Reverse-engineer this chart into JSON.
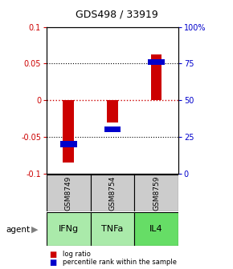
{
  "title": "GDS498 / 33919",
  "samples": [
    "GSM8749",
    "GSM8754",
    "GSM8759"
  ],
  "agents": [
    "IFNg",
    "TNFa",
    "IL4"
  ],
  "log_ratios": [
    -0.085,
    -0.03,
    0.062
  ],
  "percentile_ranks": [
    0.2,
    0.3,
    0.76
  ],
  "ylim_left": [
    -0.1,
    0.1
  ],
  "ylim_right": [
    0.0,
    1.0
  ],
  "yticks_left": [
    -0.1,
    -0.05,
    0,
    0.05,
    0.1
  ],
  "ytick_labels_left": [
    "-0.1",
    "-0.05",
    "0",
    "0.05",
    "0.1"
  ],
  "yticks_right": [
    0.0,
    0.25,
    0.5,
    0.75,
    1.0
  ],
  "ytick_labels_right": [
    "0",
    "25",
    "50",
    "75",
    "100%"
  ],
  "red_bar_width": 0.25,
  "blue_bar_width": 0.38,
  "blue_bar_height": 0.008,
  "agent_colors": [
    "#aaeaaa",
    "#aaeaaa",
    "#66dd66"
  ],
  "sample_box_color": "#cccccc",
  "left_tick_color": "#cc0000",
  "right_tick_color": "#0000cc",
  "bar_color_red": "#cc0000",
  "bar_color_blue": "#0000cc",
  "zero_line_color": "#cc0000",
  "figure_bg": "#ffffff"
}
